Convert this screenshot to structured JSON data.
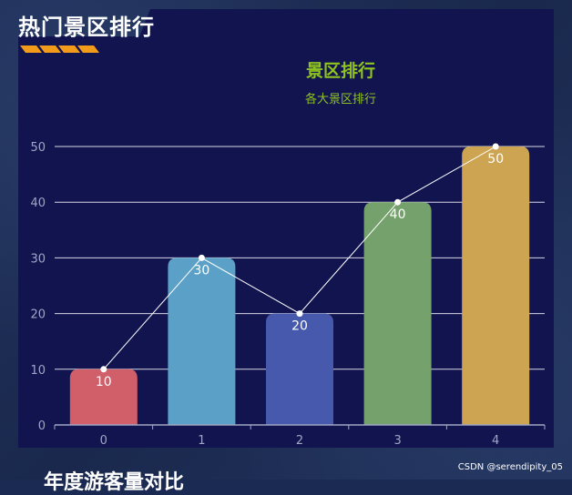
{
  "section_title": "热门景区排行",
  "next_section_title": "年度游客量对比",
  "watermark": "CSDN @serendipity_05",
  "chart_data": {
    "type": "bar",
    "title": "景区排行",
    "subtitle": "各大景区排行",
    "categories": [
      "0",
      "1",
      "2",
      "3",
      "4"
    ],
    "values": [
      10,
      30,
      20,
      40,
      50
    ],
    "data_labels": [
      "10",
      "30",
      "20",
      "40",
      "50"
    ],
    "bar_colors": [
      "#d05f6a",
      "#5ba0c6",
      "#4659ad",
      "#75a26c",
      "#cda552"
    ],
    "overlay_line": true,
    "ylim": [
      0,
      50
    ],
    "yticks": [
      "0",
      "10",
      "20",
      "30",
      "40",
      "50"
    ],
    "grid": true,
    "title_color": "#8fc31f",
    "colors": {
      "panel": "#12144f",
      "grid": "#d7d7e6",
      "axis_text": "#9fa6c4",
      "line": "#ffffff"
    }
  }
}
